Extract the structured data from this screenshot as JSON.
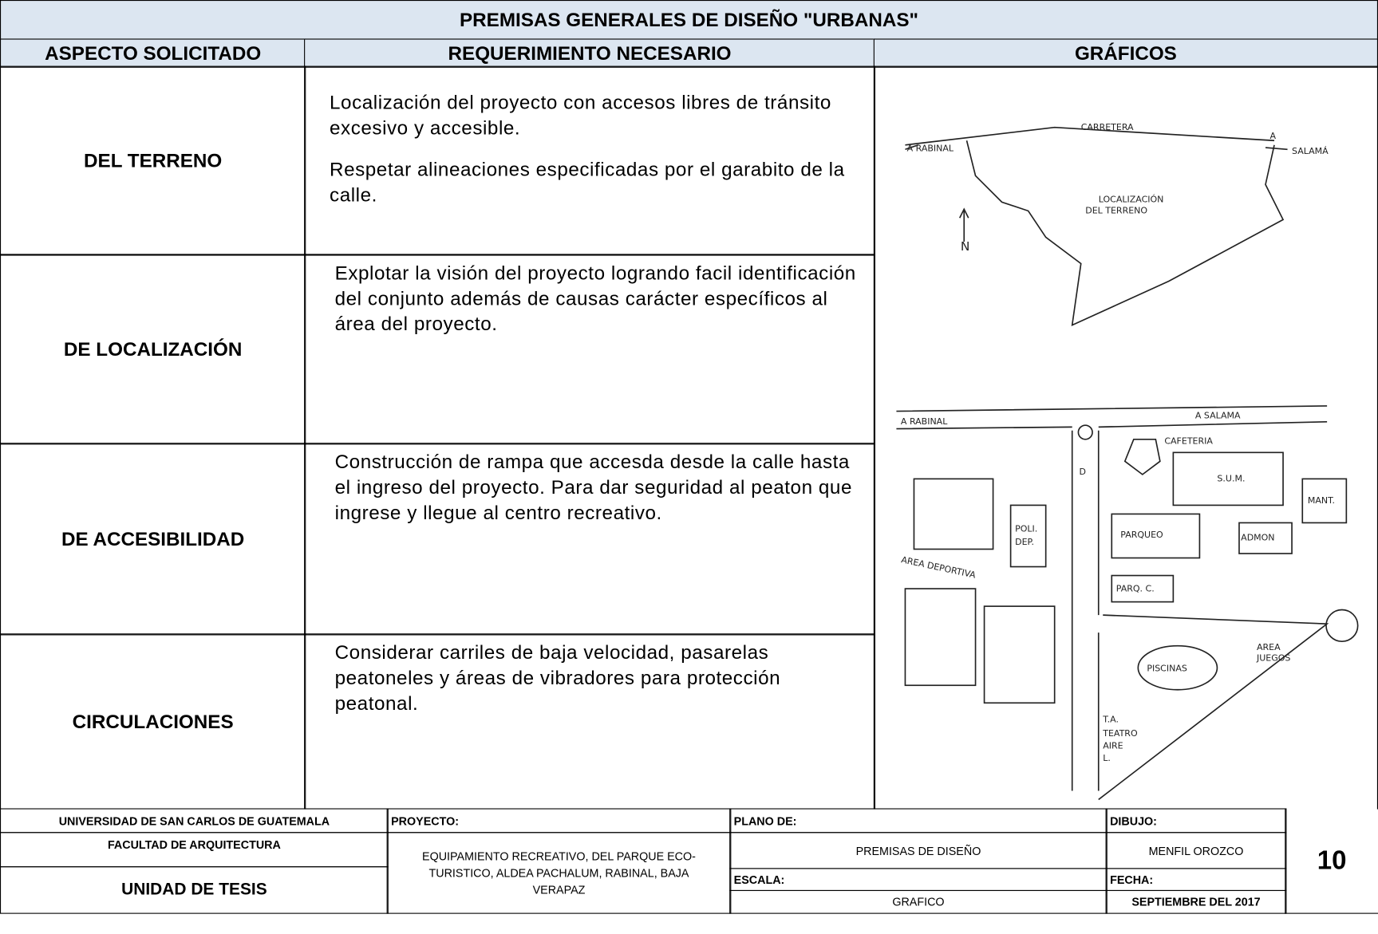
{
  "header": {
    "title": "PREMISAS GENERALES DE DISEÑO \"URBANAS\"",
    "columns": [
      "ASPECTO SOLICITADO",
      "REQUERIMIENTO NECESARIO",
      "GRÁFICOS"
    ]
  },
  "table": {
    "rows": [
      {
        "aspect": "DEL TERRENO",
        "requirement": [
          "Localización del proyecto con accesos libres de tránsito excesivo y accesible.",
          "Respetar alineaciones especificadas por el garabito de la calle."
        ]
      },
      {
        "aspect": "DE LOCALIZACIÓN",
        "requirement": [
          "Explotar la visión del proyecto logrando facil identificación del conjunto además de causas carácter específicos al área del proyecto."
        ]
      },
      {
        "aspect": "DE ACCESIBILIDAD",
        "requirement": [
          "Construcción de rampa que accesda desde la calle hasta el ingreso del proyecto. Para dar seguridad al peaton que ingrese y llegue al centro recreativo."
        ]
      },
      {
        "aspect": "CIRCULACIONES",
        "requirement": [
          "Considerar carriles de baja velocidad, pasarelas peatoneles y áreas de vibradores para protección peatonal."
        ]
      }
    ]
  },
  "graphics": {
    "map_labels": [
      "CARRETERA",
      "A RABINAL",
      "A",
      "SALAMÁ",
      "LOCALIZACIÓN",
      "DEL TERRENO",
      "N"
    ],
    "site_labels": [
      "A RABINAL",
      "A SALAMA",
      "CAFETERIA",
      "S.U.M.",
      "MANT.",
      "PARQUEO",
      "ADMON",
      "POLI.",
      "DEP.",
      "AREA DEPORTIVA",
      "PARQ. C.",
      "PISCINAS",
      "AREA",
      "JUEGOS",
      "T.A.",
      "TEATRO",
      "AIRE",
      "L.",
      "D"
    ]
  },
  "footer": {
    "university": "UNIVERSIDAD DE SAN CARLOS DE GUATEMALA",
    "faculty": "FACULTAD DE ARQUITECTURA",
    "unit": "UNIDAD DE TESIS",
    "project_label": "PROYECTO:",
    "project": "EQUIPAMIENTO RECREATIVO, DEL PARQUE ECO-TURISTICO, ALDEA PACHALUM, RABINAL, BAJA VERAPAZ",
    "plan_label": "PLANO DE:",
    "plan": "PREMISAS DE DISEÑO",
    "scale_label": "ESCALA:",
    "scale": "GRAFICO",
    "drawing_label": "DIBUJO:",
    "drawing": "MENFIL OROZCO",
    "date_label": "FECHA:",
    "date": "SEPTIEMBRE DEL 2017",
    "sheet": "10"
  }
}
